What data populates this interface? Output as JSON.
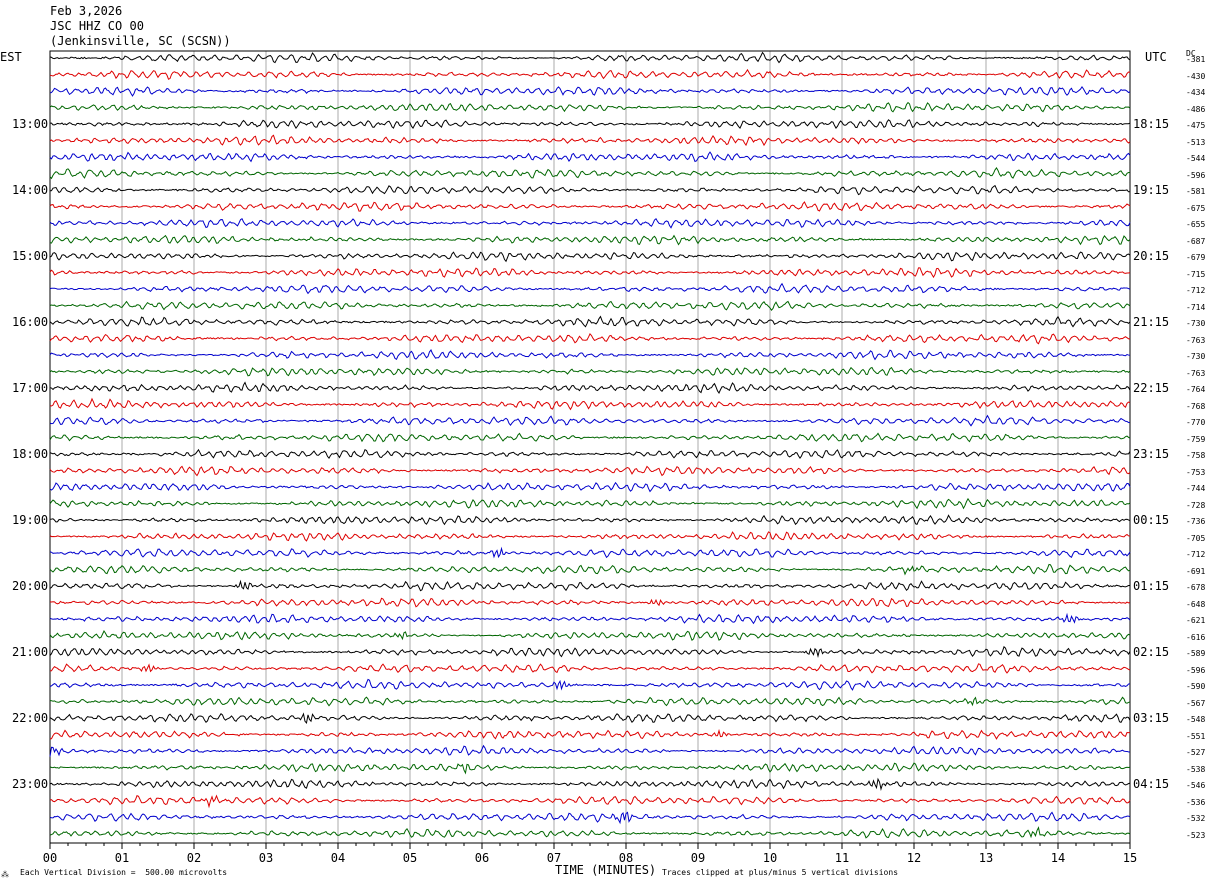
{
  "header": {
    "date": "Feb 3,2026",
    "station": "JSC HHZ CO 00",
    "location": "(Jenkinsville, SC (SCSN))"
  },
  "left_tz": "EST",
  "right_tz": "UTC",
  "dc_label": "DC",
  "footer": {
    "scale": "Each Vertical Division =  500.00 microvolts",
    "clip": "Traces clipped at plus/minus 5 vertical divisions",
    "mark": "⁂"
  },
  "colors": {
    "cycle": [
      "#000000",
      "#dd0000",
      "#0000cc",
      "#006600"
    ],
    "grid": "#000000"
  },
  "chart_data": {
    "type": "line",
    "title": "",
    "xlabel": "TIME (MINUTES)",
    "xlim": [
      0,
      15
    ],
    "x_ticks": [
      "00",
      "01",
      "02",
      "03",
      "04",
      "05",
      "06",
      "07",
      "08",
      "09",
      "10",
      "11",
      "12",
      "13",
      "14",
      "15"
    ],
    "left_hour_labels": [
      "13:00",
      "14:00",
      "15:00",
      "16:00",
      "17:00",
      "18:00",
      "19:00",
      "20:00",
      "21:00",
      "22:00",
      "23:00"
    ],
    "right_hour_labels": [
      "18:15",
      "19:15",
      "20:15",
      "21:15",
      "22:15",
      "23:15",
      "00:15",
      "01:15",
      "02:15",
      "03:15",
      "04:15"
    ],
    "traces_per_hour": 4,
    "trace_minutes": 15,
    "dc_offsets": [
      -381,
      -430,
      -434,
      -486,
      -475,
      -513,
      -544,
      -596,
      -581,
      -675,
      -655,
      -687,
      -679,
      -715,
      -712,
      -714,
      -730,
      -763,
      -730,
      -763,
      -764,
      -768,
      -770,
      -759,
      -758,
      -753,
      -744,
      -728,
      -736,
      -705,
      -712,
      -691,
      -678,
      -648,
      -621,
      -616,
      -589,
      -596,
      -590,
      -567,
      -548,
      -551,
      -527,
      -538,
      -546,
      -536,
      -532,
      -523
    ]
  }
}
